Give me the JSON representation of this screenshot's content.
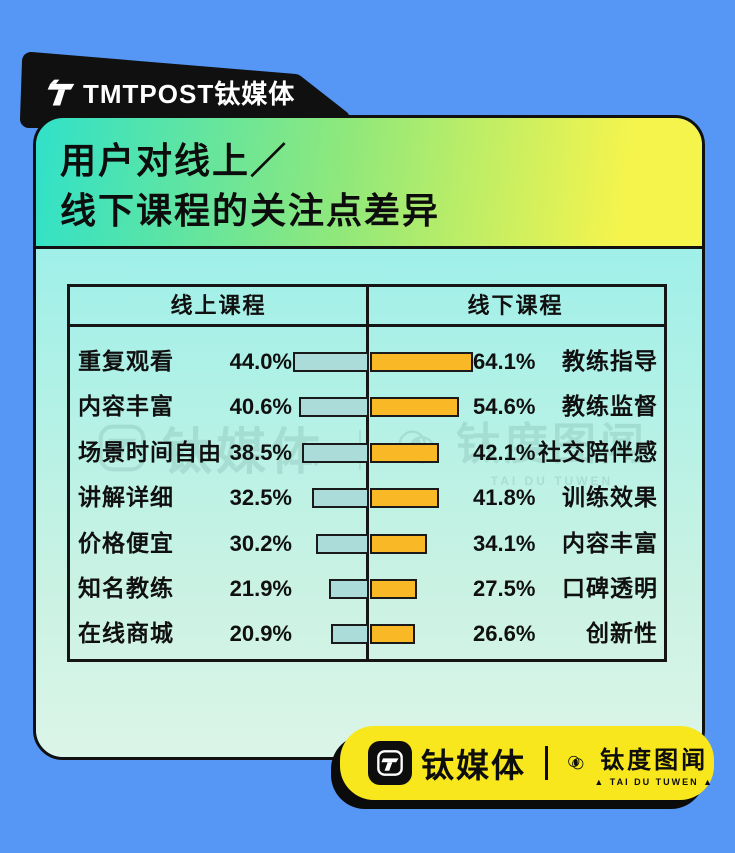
{
  "colors": {
    "background": "#5697f6",
    "badge_black": "#101010",
    "header_gradient_start": "#30e1c9",
    "header_gradient_mid": "#8fe87b",
    "header_gradient_end": "#f5f44d",
    "body_gradient_start": "#9ff0e9",
    "body_gradient_end": "#dbf5e8",
    "bar_left_fill": "#abdcd9",
    "bar_right_fill": "#f9b826",
    "footer_yellow": "#f9e71e"
  },
  "top_badge": {
    "brand": "TMTPOST钛媒体"
  },
  "header": {
    "title_line1": "用户对线上／",
    "title_line2": "线下课程的关注点差异"
  },
  "table": {
    "header_left": "线上课程",
    "header_right": "线下课程"
  },
  "chart_data": {
    "type": "bar",
    "title": "用户对线上／线下课程的关注点差异",
    "orientation": "horizontal-diverging",
    "unit": "%",
    "columns": [
      "线上课程",
      "线下课程"
    ],
    "rows": [
      {
        "left_label": "重复观看",
        "left_value": 44.0,
        "left_text": "44.0%",
        "right_value": 64.1,
        "right_text": "64.1%",
        "right_label": "教练指导"
      },
      {
        "left_label": "内容丰富",
        "left_value": 40.6,
        "left_text": "40.6%",
        "right_value": 54.6,
        "right_text": "54.6%",
        "right_label": "教练监督"
      },
      {
        "left_label": "场景时间自由",
        "left_value": 38.5,
        "left_text": "38.5%",
        "right_value": 42.1,
        "right_text": "42.1%",
        "right_label": "社交陪伴感"
      },
      {
        "left_label": "讲解详细",
        "left_value": 32.5,
        "left_text": "32.5%",
        "right_value": 41.8,
        "right_text": "41.8%",
        "right_label": "训练效果"
      },
      {
        "left_label": "价格便宜",
        "left_value": 30.2,
        "left_text": "30.2%",
        "right_value": 34.1,
        "right_text": "34.1%",
        "right_label": "内容丰富"
      },
      {
        "left_label": "知名教练",
        "left_value": 21.9,
        "left_text": "21.9%",
        "right_value": 27.5,
        "right_text": "27.5%",
        "right_label": "口碑透明"
      },
      {
        "left_label": "在线商城",
        "left_value": 20.9,
        "left_text": "20.9%",
        "right_value": 26.6,
        "right_text": "26.6%",
        "right_label": "创新性"
      }
    ]
  },
  "watermark": {
    "brand": "钛媒体",
    "pipe": "｜",
    "sub_brand": "钛度图闻",
    "caption": "TAI DU TUWEN"
  },
  "footer_badge": {
    "brand": "钛媒体",
    "sub_brand": "钛度图闻",
    "caption": "▲ TAI DU TUWEN ▲"
  }
}
